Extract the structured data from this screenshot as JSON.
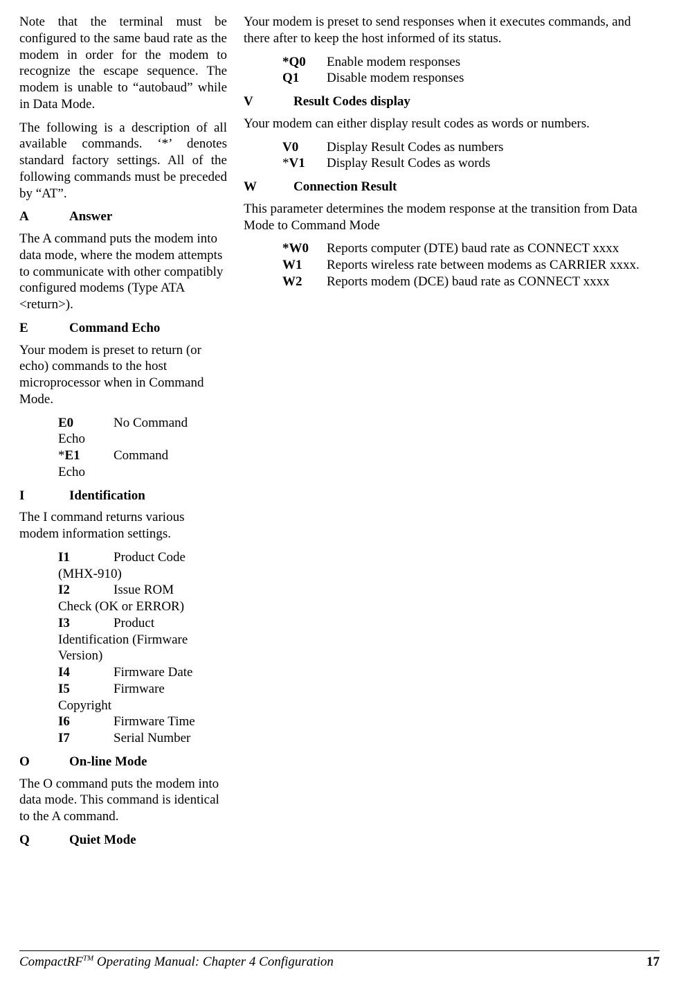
{
  "left": {
    "p1": "Note that the terminal must be configured to the same baud rate as the modem in order for the modem to recognize the escape sequence.  The modem is unable to “autobaud” while in Data Mode.",
    "p2": "The following is a description of all available commands.  ‘*’ denotes standard factory settings.  All of the following commands must be preceded by “AT”.",
    "A": {
      "letter": "A",
      "name": "Answer",
      "desc": "The A command puts the modem into data mode, where the modem attempts to communicate with other compatibly configured modems (Type ATA <return>)."
    },
    "E": {
      "letter": "E",
      "name": "Command Echo",
      "desc": "Your modem is preset to return (or echo) commands to the host microprocessor when in Command Mode.",
      "opts": [
        {
          "code": "E0",
          "desc": "No Command Echo",
          "star": false
        },
        {
          "code": "E1",
          "desc": "Command Echo",
          "star": true
        }
      ]
    },
    "I": {
      "letter": "I",
      "name": "Identification",
      "desc": "The I command returns various modem information settings.",
      "opts": [
        {
          "code": "I1",
          "desc": "Product Code (MHX-910)"
        },
        {
          "code": "I2",
          "desc": "Issue ROM Check (OK or ERROR)"
        },
        {
          "code": "I3",
          "desc": "Product Identification (Firmware Version)"
        },
        {
          "code": "I4",
          "desc": "Firmware Date"
        },
        {
          "code": "I5",
          "desc": "Firmware Copyright"
        },
        {
          "code": "I6",
          "desc": "Firmware Time"
        },
        {
          "code": "I7",
          "desc": "Serial Number"
        }
      ]
    },
    "O": {
      "letter": "O",
      "name": "On-line Mode",
      "desc": "The O command puts the modem into data mode.  This command is identical to the A command."
    },
    "Q": {
      "letter": "Q",
      "name": "Quiet Mode"
    }
  },
  "right": {
    "Qdesc": "Your modem is preset to send responses when it executes commands, and there after to keep the host informed of its status.",
    "Qopts": [
      {
        "code": "*Q0",
        "desc": "Enable modem responses",
        "boldcode": "*Q0"
      },
      {
        "code": "Q1",
        "desc": "Disable modem responses"
      }
    ],
    "V": {
      "letter": "V",
      "name": "Result Codes display",
      "desc": "Your modem can either display result codes as words or numbers.",
      "opts": [
        {
          "code": "V0",
          "desc": "Display Result Codes as numbers",
          "star": false
        },
        {
          "code": "V1",
          "desc": "Display Result Codes as words",
          "star": true
        }
      ]
    },
    "W": {
      "letter": "W",
      "name": "Connection Result",
      "desc": "This parameter determines the modem response at the transition from Data Mode to Command Mode",
      "opts": [
        {
          "code": "*W0",
          "desc": "Reports computer (DTE) baud rate as CONNECT xxxx"
        },
        {
          "code": "W1",
          "desc": "Reports wireless rate between modems as CARRIER xxxx."
        },
        {
          "code": "W2",
          "desc": "Reports modem (DCE) baud rate as CONNECT xxxx"
        }
      ]
    }
  },
  "footer": {
    "left1": "CompactRF",
    "tm": "TM",
    "left2": " Operating Manual: Chapter 4 Configuration",
    "page": "17"
  }
}
